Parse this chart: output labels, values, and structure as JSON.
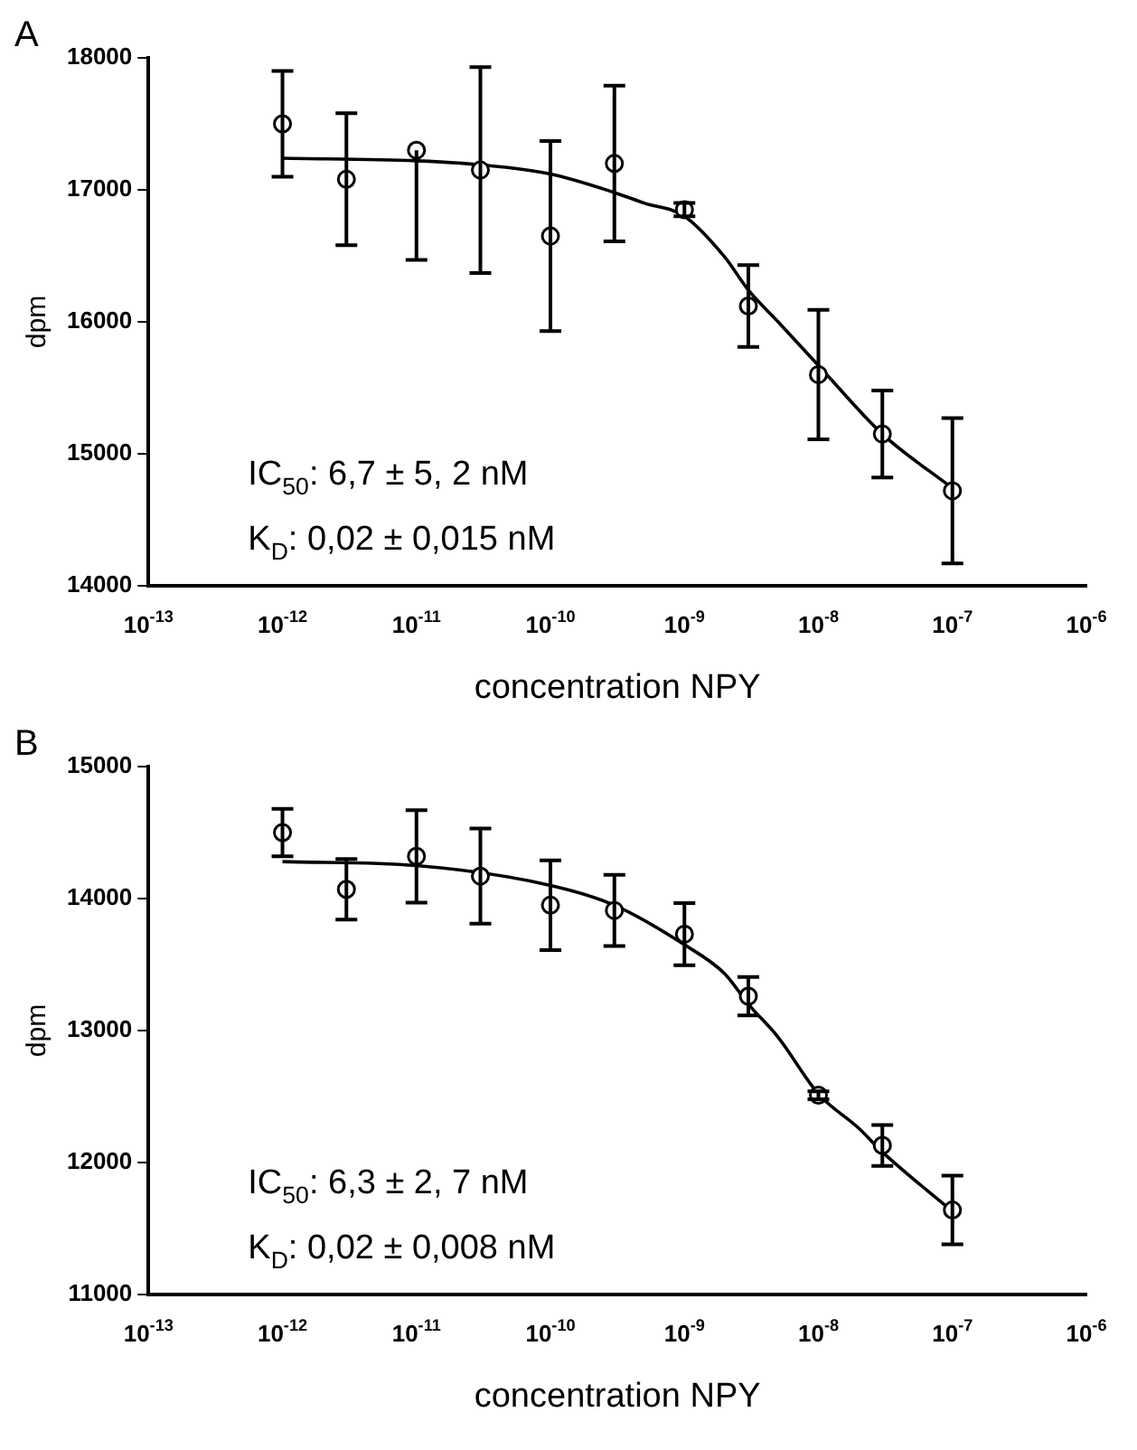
{
  "chart_data": [
    {
      "type": "scatter",
      "title": "A",
      "xlabel": "concentration NPY",
      "ylabel": "dpm",
      "log": "x",
      "marker": "circle",
      "grid": false,
      "legend": false,
      "xlim": [
        1e-13,
        1e-06
      ],
      "xticks": [
        {
          "value": 1e-13,
          "label": "10$^{-13}$"
        },
        {
          "value": 1e-12,
          "label": "10$^{-12}$"
        },
        {
          "value": 1e-11,
          "label": "10$^{-11}$"
        },
        {
          "value": 1e-10,
          "label": "10$^{-10}$"
        },
        {
          "value": 1e-09,
          "label": "10$^{-9}$"
        },
        {
          "value": 1e-08,
          "label": "10$^{-8}$"
        },
        {
          "value": 1e-07,
          "label": "10$^{-7}$"
        },
        {
          "value": 1e-06,
          "label": "10$^{-6}$"
        }
      ],
      "ylim": [
        14000,
        18000
      ],
      "yticks": [
        14000,
        15000,
        16000,
        17000,
        18000
      ],
      "annotations": [
        "IC$_{50}$: 6,7 ± 5, 2 nM",
        "K$_{D}$: 0,02 ± 0,015 nM"
      ],
      "series": [
        {
          "color": "#000000",
          "x": [
            1e-12,
            3e-12,
            1e-11,
            3e-11,
            1e-10,
            3e-10,
            1e-09,
            3e-09,
            1e-08,
            3e-08,
            1e-07
          ],
          "values": [
            17500,
            17080,
            17300,
            17150,
            16650,
            17200,
            16850,
            16120,
            15600,
            15150,
            14720
          ],
          "errors": [
            400,
            500,
            [
              16470,
              17300
            ],
            780,
            720,
            590,
            50,
            310,
            490,
            330,
            550
          ]
        },
        {
          "type": "line",
          "color": "#000000",
          "marker": "none",
          "x": [
            1e-12,
            1e-11,
            3e-11,
            1e-10,
            3e-10,
            5e-10,
            1e-09,
            2e-09,
            3e-09,
            5e-09,
            1e-08,
            3e-08,
            1e-07
          ],
          "values": [
            17240,
            17220,
            17190,
            17120,
            16980,
            16900,
            16800,
            16490,
            16240,
            16000,
            15670,
            15150,
            14740
          ]
        }
      ]
    },
    {
      "type": "scatter",
      "title": "B",
      "xlabel": "concentration NPY",
      "ylabel": "dpm",
      "log": "x",
      "marker": "circle",
      "grid": false,
      "legend": false,
      "xlim": [
        1e-13,
        1e-06
      ],
      "xticks": [
        {
          "value": 1e-13,
          "label": "10$^{-13}$"
        },
        {
          "value": 1e-12,
          "label": "10$^{-12}$"
        },
        {
          "value": 1e-11,
          "label": "10$^{-11}$"
        },
        {
          "value": 1e-10,
          "label": "10$^{-10}$"
        },
        {
          "value": 1e-09,
          "label": "10$^{-9}$"
        },
        {
          "value": 1e-08,
          "label": "10$^{-8}$"
        },
        {
          "value": 1e-07,
          "label": "10$^{-7}$"
        },
        {
          "value": 1e-06,
          "label": "10$^{-6}$"
        }
      ],
      "ylim": [
        11000,
        15000
      ],
      "yticks": [
        11000,
        12000,
        13000,
        14000,
        15000
      ],
      "annotations": [
        "IC$_{50}$: 6,3 ± 2, 7 nM",
        "K$_{D}$: 0,02 ± 0,008 nM"
      ],
      "series": [
        {
          "color": "#000000",
          "x": [
            1e-12,
            3e-12,
            1e-11,
            3e-11,
            1e-10,
            3e-10,
            1e-09,
            3e-09,
            1e-08,
            3e-08,
            1e-07
          ],
          "values": [
            14500,
            14070,
            14320,
            14170,
            13950,
            13910,
            13730,
            13260,
            12510,
            12130,
            11640
          ],
          "errors": [
            180,
            230,
            350,
            360,
            340,
            270,
            235,
            145,
            30,
            155,
            260
          ]
        },
        {
          "type": "line",
          "color": "#000000",
          "marker": "none",
          "x": [
            1e-12,
            1e-11,
            1e-10,
            3e-10,
            1e-09,
            2e-09,
            3e-09,
            5e-09,
            1e-08,
            2e-08,
            3e-08,
            1e-07
          ],
          "values": [
            14280,
            14250,
            14100,
            13950,
            13650,
            13430,
            13200,
            12950,
            12520,
            12260,
            12080,
            11630
          ]
        }
      ]
    }
  ]
}
